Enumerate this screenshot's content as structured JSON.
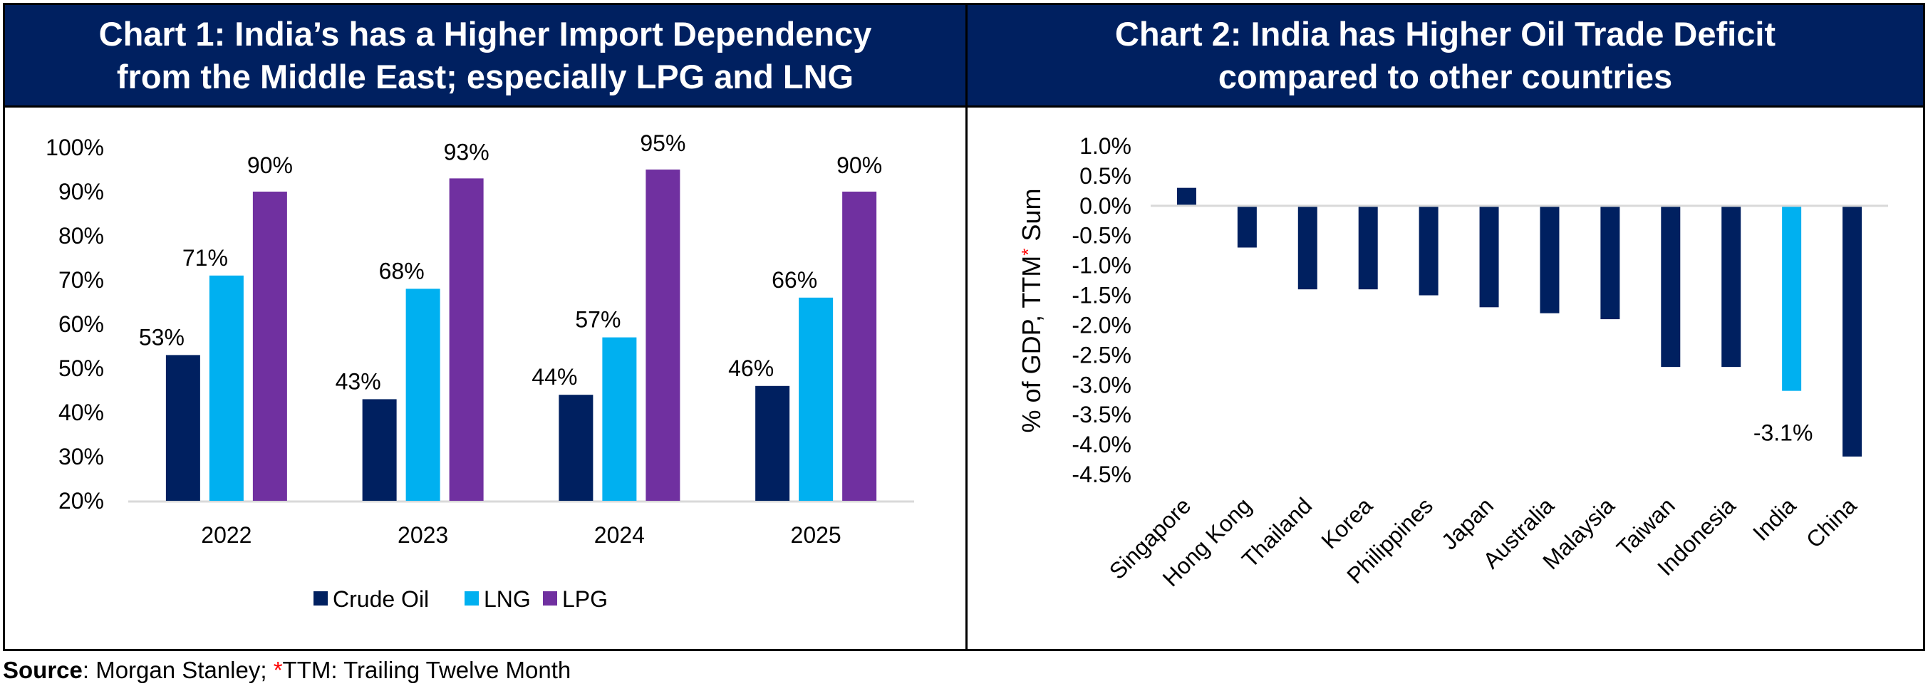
{
  "chart_data": [
    {
      "type": "bar",
      "title": "Chart 1: India’s has a Higher Import Dependency from the Middle East; especially LPG and LNG",
      "categories": [
        "2022",
        "2023",
        "2024",
        "2025"
      ],
      "series": [
        {
          "name": "Crude Oil",
          "values": [
            53,
            43,
            44,
            46
          ],
          "color": "#002060"
        },
        {
          "name": "LNG",
          "values": [
            71,
            68,
            57,
            66
          ],
          "color": "#00B0F0"
        },
        {
          "name": "LPG",
          "values": [
            90,
            93,
            95,
            90
          ],
          "color": "#7030A0"
        }
      ],
      "data_labels": {
        "Crude Oil": [
          "53%",
          "43%",
          "44%",
          "46%"
        ],
        "LNG": [
          "71%",
          "68%",
          "57%",
          "66%"
        ],
        "LPG": [
          "90%",
          "93%",
          "95%",
          "90%"
        ]
      },
      "ylim": [
        20,
        100
      ],
      "yticks": [
        "20%",
        "30%",
        "40%",
        "50%",
        "60%",
        "70%",
        "80%",
        "90%",
        "100%"
      ],
      "xlabel": "",
      "ylabel": "",
      "grid": false,
      "legend": "bottom"
    },
    {
      "type": "bar",
      "title": "Chart 2: India has Higher Oil Trade Deficit compared to other countries",
      "categories": [
        "Singapore",
        "Hong Kong",
        "Thailand",
        "Korea",
        "Philippines",
        "Japan",
        "Australia",
        "Malaysia",
        "Taiwan",
        "Indonesia",
        "India",
        "China"
      ],
      "values": [
        0.3,
        -0.7,
        -1.4,
        -1.4,
        -1.5,
        -1.7,
        -1.8,
        -1.9,
        -2.7,
        -2.7,
        -3.1,
        -4.2
      ],
      "highlight": {
        "category": "India",
        "color": "#00B0F0",
        "label": "-3.1%"
      },
      "bar_color": "#002060",
      "ylim": [
        -4.5,
        1.0
      ],
      "yticks": [
        "-4.5%",
        "-4.0%",
        "-3.5%",
        "-3.0%",
        "-2.5%",
        "-2.0%",
        "-1.5%",
        "-1.0%",
        "-0.5%",
        "0.0%",
        "0.5%",
        "1.0%"
      ],
      "ylabel": {
        "text": "% of GDP, TTM",
        "star": "*",
        "suffix": " Sum"
      },
      "xlabel": "",
      "grid": false,
      "legend": "none"
    }
  ],
  "titles": {
    "chart1_line1": "Chart 1: India’s has a Higher Import Dependency",
    "chart1_line2": "from the Middle East; especially LPG and LNG",
    "chart2_line1": "Chart 2: India has Higher Oil Trade Deficit",
    "chart2_line2": "compared to other countries"
  },
  "footer": {
    "source_label": "Source",
    "source_text": ": Morgan Stanley; ",
    "star": "*",
    "note": "TTM: Trailing Twelve Month"
  }
}
